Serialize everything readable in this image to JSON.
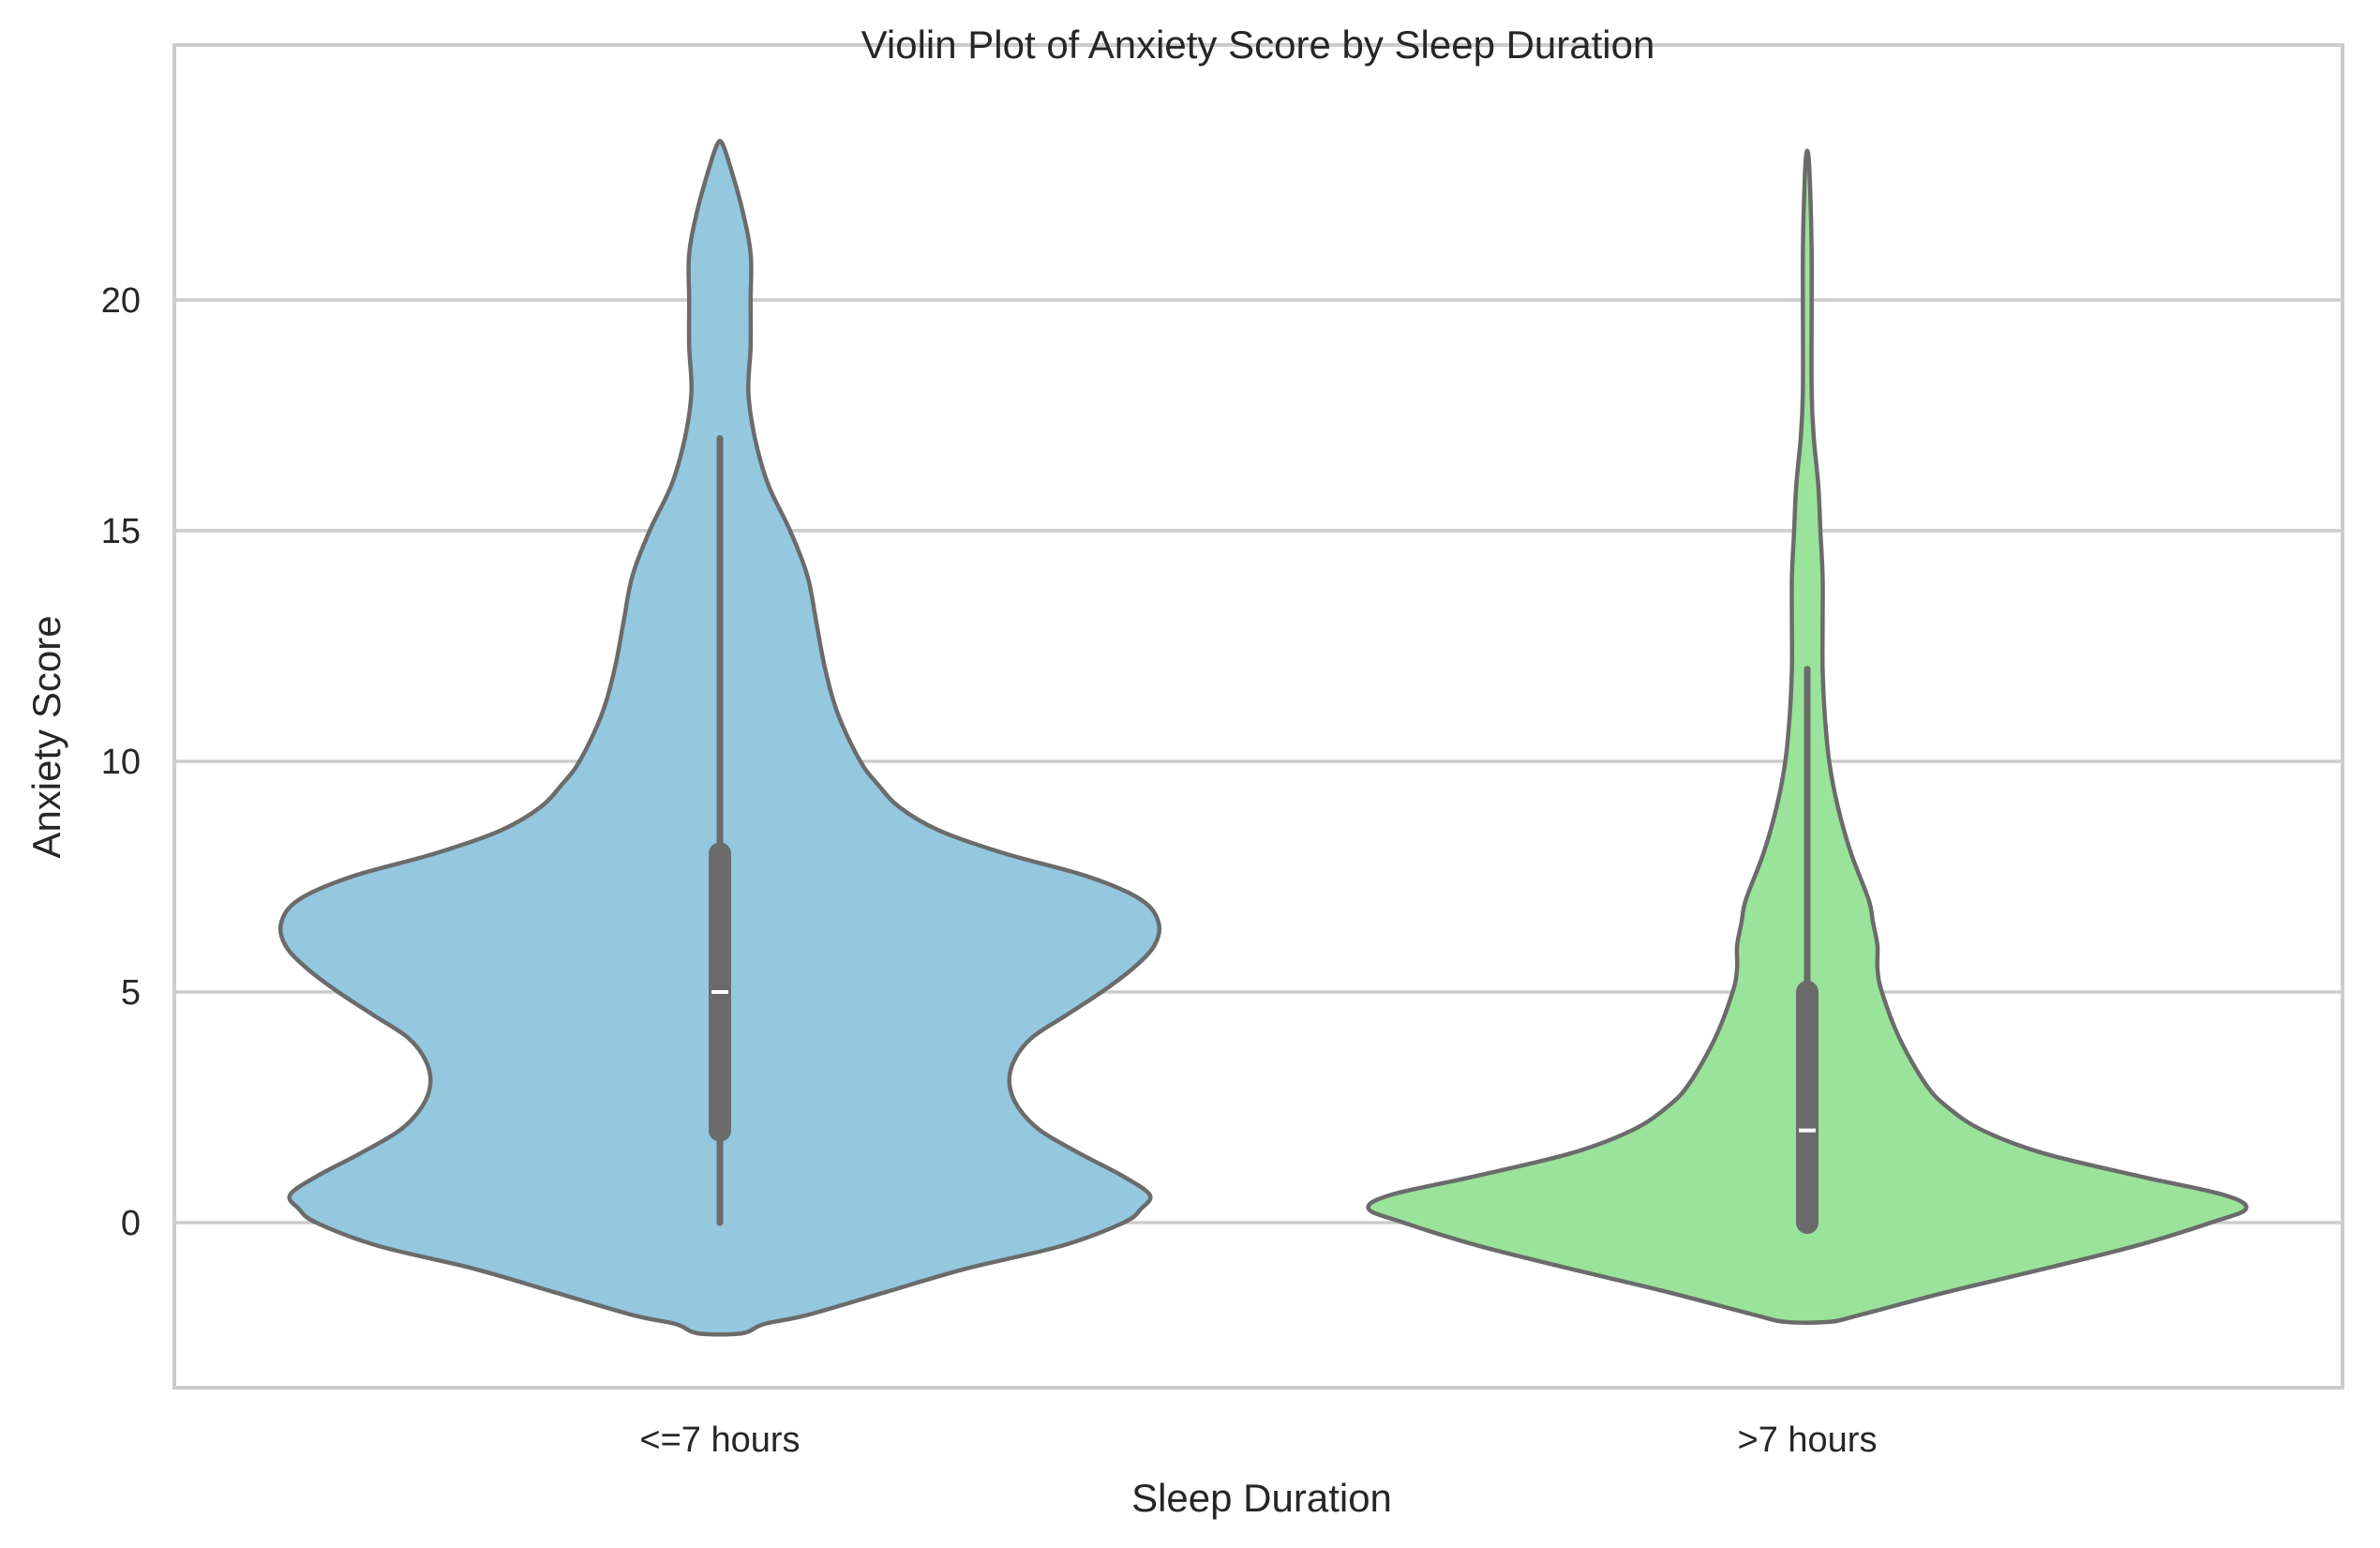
{
  "chart_data": {
    "type": "violin",
    "title": "Violin Plot of Anxiety Score by Sleep Duration",
    "xlabel": "Sleep Duration",
    "ylabel": "Anxiety Score",
    "ylim": [
      -3.6,
      25.5
    ],
    "yticks": [
      0,
      5,
      10,
      15,
      20
    ],
    "grid": "horizontal",
    "categories": [
      "<=7 hours",
      ">7 hours"
    ],
    "series": [
      {
        "category": "<=7 hours",
        "color": "#93C8DF",
        "box": {
          "whisker_low": 0,
          "q1": 2,
          "median": 5,
          "q3": 8,
          "whisker_high": 17
        },
        "density": [
          [
            -2.4,
            0.05
          ],
          [
            -2.2,
            0.1
          ],
          [
            -2.0,
            0.2
          ],
          [
            -1.5,
            0.38
          ],
          [
            -1.0,
            0.56
          ],
          [
            -0.5,
            0.78
          ],
          [
            0.0,
            0.92
          ],
          [
            0.3,
            0.96
          ],
          [
            0.6,
            0.98
          ],
          [
            1.0,
            0.92
          ],
          [
            1.5,
            0.82
          ],
          [
            2.0,
            0.73
          ],
          [
            2.5,
            0.68
          ],
          [
            3.0,
            0.66
          ],
          [
            3.5,
            0.67
          ],
          [
            4.0,
            0.71
          ],
          [
            4.5,
            0.79
          ],
          [
            5.0,
            0.87
          ],
          [
            5.5,
            0.94
          ],
          [
            6.0,
            0.99
          ],
          [
            6.5,
            1.0
          ],
          [
            7.0,
            0.96
          ],
          [
            7.5,
            0.84
          ],
          [
            8.0,
            0.65
          ],
          [
            8.5,
            0.5
          ],
          [
            9.0,
            0.41
          ],
          [
            9.5,
            0.36
          ],
          [
            10.0,
            0.32
          ],
          [
            11.0,
            0.27
          ],
          [
            12.0,
            0.24
          ],
          [
            13.0,
            0.22
          ],
          [
            14.0,
            0.2
          ],
          [
            15.0,
            0.16
          ],
          [
            16.0,
            0.11
          ],
          [
            17.0,
            0.08
          ],
          [
            18.0,
            0.065
          ],
          [
            19.0,
            0.07
          ],
          [
            20.0,
            0.07
          ],
          [
            21.0,
            0.07
          ],
          [
            22.0,
            0.05
          ],
          [
            23.0,
            0.02
          ],
          [
            23.4,
            0.005
          ]
        ]
      },
      {
        "category": ">7 hours",
        "color": "#9AE39A",
        "box": {
          "whisker_low": 0,
          "q1": 0,
          "median": 2,
          "q3": 5,
          "whisker_high": 12
        },
        "density": [
          [
            -2.15,
            0.05
          ],
          [
            -2.0,
            0.12
          ],
          [
            -1.5,
            0.32
          ],
          [
            -1.0,
            0.54
          ],
          [
            -0.5,
            0.75
          ],
          [
            0.0,
            0.92
          ],
          [
            0.3,
            1.0
          ],
          [
            0.6,
            0.95
          ],
          [
            1.0,
            0.76
          ],
          [
            1.5,
            0.54
          ],
          [
            2.0,
            0.4
          ],
          [
            2.5,
            0.32
          ],
          [
            3.0,
            0.27
          ],
          [
            4.0,
            0.21
          ],
          [
            5.0,
            0.17
          ],
          [
            5.5,
            0.16
          ],
          [
            6.0,
            0.16
          ],
          [
            6.5,
            0.15
          ],
          [
            7.0,
            0.14
          ],
          [
            8.0,
            0.1
          ],
          [
            9.0,
            0.07
          ],
          [
            10.0,
            0.05
          ],
          [
            11.0,
            0.04
          ],
          [
            12.0,
            0.035
          ],
          [
            13.0,
            0.035
          ],
          [
            14.0,
            0.035
          ],
          [
            15.0,
            0.03
          ],
          [
            16.0,
            0.025
          ],
          [
            17.0,
            0.015
          ],
          [
            18.0,
            0.01
          ],
          [
            20.0,
            0.01
          ],
          [
            21.0,
            0.01
          ],
          [
            22.0,
            0.008
          ],
          [
            23.1,
            0.003
          ]
        ]
      }
    ]
  }
}
